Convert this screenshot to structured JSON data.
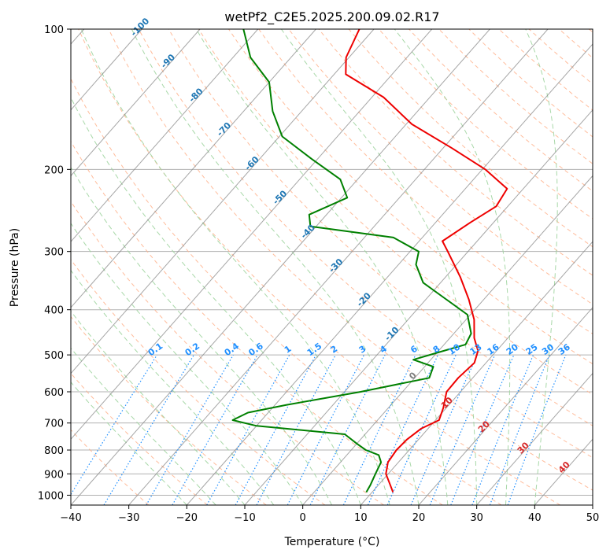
{
  "chart_data": {
    "type": "skew-t log-p",
    "title": "wetPf2_C2E5.2025.200.09.02.R17",
    "xlabel": "Temperature (°C)",
    "ylabel": "Pressure (hPa)",
    "xlim": [
      -40,
      50
    ],
    "ylim": [
      1050,
      100
    ],
    "grid": true,
    "x_ticks": [
      -40,
      -30,
      -20,
      -10,
      0,
      10,
      20,
      30,
      40,
      50
    ],
    "x_tick_labels": [
      "−40",
      "−30",
      "−20",
      "−10",
      "0",
      "10",
      "20",
      "30",
      "40",
      "50"
    ],
    "y_ticks": [
      1000,
      900,
      800,
      700,
      600,
      500,
      400,
      300,
      200,
      100
    ],
    "y_tick_labels": [
      "1000",
      "900",
      "800",
      "700",
      "600",
      "500",
      "400",
      "300",
      "200",
      "100"
    ],
    "colors": {
      "temperature": "#ee0000",
      "dewpoint": "#008000",
      "isotherm": "#888888",
      "dry_adiabat": "#ffb08a",
      "moist_adiabat": "#9fd49f",
      "mixing_ratio": "#1f8fff",
      "isotherm_label_blue": "#1f77b4",
      "isotherm_label_red": "#d62728",
      "isotherm_label_gray": "#7f7f7f"
    },
    "series": [
      {
        "key": "temperature",
        "points": [
          {
            "p": 985,
            "t": 13.6
          },
          {
            "p": 950,
            "t": 12.0
          },
          {
            "p": 900,
            "t": 9.6
          },
          {
            "p": 850,
            "t": 8.2
          },
          {
            "p": 800,
            "t": 7.8
          },
          {
            "p": 760,
            "t": 8.0
          },
          {
            "p": 720,
            "t": 8.8
          },
          {
            "p": 690,
            "t": 10.6
          },
          {
            "p": 650,
            "t": 9.5
          },
          {
            "p": 600,
            "t": 7.6
          },
          {
            "p": 560,
            "t": 7.5
          },
          {
            "p": 520,
            "t": 8.0
          },
          {
            "p": 490,
            "t": 6.8
          },
          {
            "p": 460,
            "t": 4.2
          },
          {
            "p": 420,
            "t": 1.4
          },
          {
            "p": 380,
            "t": -2.6
          },
          {
            "p": 340,
            "t": -7.5
          },
          {
            "p": 300,
            "t": -13.5
          },
          {
            "p": 285,
            "t": -16.0
          },
          {
            "p": 260,
            "t": -14.0
          },
          {
            "p": 240,
            "t": -12.0
          },
          {
            "p": 220,
            "t": -12.8
          },
          {
            "p": 200,
            "t": -19.5
          },
          {
            "p": 180,
            "t": -28.5
          },
          {
            "p": 160,
            "t": -39.0
          },
          {
            "p": 140,
            "t": -48.0
          },
          {
            "p": 125,
            "t": -58.0
          },
          {
            "p": 115,
            "t": -60.5
          },
          {
            "p": 100,
            "t": -62.5
          }
        ]
      },
      {
        "key": "dewpoint",
        "points": [
          {
            "p": 985,
            "t": 9.0
          },
          {
            "p": 950,
            "t": 8.6
          },
          {
            "p": 900,
            "t": 7.8
          },
          {
            "p": 850,
            "t": 7.0
          },
          {
            "p": 820,
            "t": 5.5
          },
          {
            "p": 800,
            "t": 2.5
          },
          {
            "p": 775,
            "t": 0.0
          },
          {
            "p": 740,
            "t": -3.5
          },
          {
            "p": 710,
            "t": -20.0
          },
          {
            "p": 690,
            "t": -25.0
          },
          {
            "p": 665,
            "t": -23.5
          },
          {
            "p": 640,
            "t": -18.0
          },
          {
            "p": 600,
            "t": -7.2
          },
          {
            "p": 560,
            "t": 2.5
          },
          {
            "p": 530,
            "t": 1.5
          },
          {
            "p": 512,
            "t": -3.0
          },
          {
            "p": 495,
            "t": 0.0
          },
          {
            "p": 475,
            "t": 3.7
          },
          {
            "p": 450,
            "t": 3.0
          },
          {
            "p": 410,
            "t": -0.5
          },
          {
            "p": 380,
            "t": -6.5
          },
          {
            "p": 350,
            "t": -13.0
          },
          {
            "p": 320,
            "t": -17.0
          },
          {
            "p": 300,
            "t": -18.5
          },
          {
            "p": 280,
            "t": -25.0
          },
          {
            "p": 265,
            "t": -41.0
          },
          {
            "p": 250,
            "t": -43.0
          },
          {
            "p": 230,
            "t": -39.0
          },
          {
            "p": 210,
            "t": -43.0
          },
          {
            "p": 190,
            "t": -51.0
          },
          {
            "p": 170,
            "t": -59.5
          },
          {
            "p": 150,
            "t": -65.0
          },
          {
            "p": 130,
            "t": -70.0
          },
          {
            "p": 115,
            "t": -77.0
          },
          {
            "p": 100,
            "t": -82.5
          }
        ]
      }
    ],
    "isotherm_labels": [
      {
        "text": "-100",
        "t": -100,
        "color": "blue"
      },
      {
        "text": "-90",
        "t": -90,
        "color": "blue"
      },
      {
        "text": "-80",
        "t": -80,
        "color": "blue"
      },
      {
        "text": "-70",
        "t": -70,
        "color": "blue"
      },
      {
        "text": "-60",
        "t": -60,
        "color": "blue"
      },
      {
        "text": "-50",
        "t": -50,
        "color": "blue"
      },
      {
        "text": "-40",
        "t": -40,
        "color": "blue"
      },
      {
        "text": "-30",
        "t": -30,
        "color": "blue"
      },
      {
        "text": "-20",
        "t": -20,
        "color": "blue"
      },
      {
        "text": "-10",
        "t": -10,
        "color": "blue"
      },
      {
        "text": "0",
        "t": 0,
        "color": "gray"
      },
      {
        "text": "10",
        "t": 10,
        "color": "red"
      },
      {
        "text": "20",
        "t": 20,
        "color": "red"
      },
      {
        "text": "30",
        "t": 30,
        "color": "red"
      },
      {
        "text": "40",
        "t": 40,
        "color": "red"
      }
    ],
    "mixing_ratio_labels": [
      "0.1",
      "0.2",
      "0.4",
      "0.6",
      "1",
      "1.5",
      "2",
      "3",
      "4",
      "6",
      "8",
      "10",
      "13",
      "16",
      "20",
      "25",
      "30",
      "36"
    ],
    "mixing_ratio_values": [
      0.1,
      0.2,
      0.4,
      0.6,
      1,
      1.5,
      2,
      3,
      4,
      6,
      8,
      10,
      13,
      16,
      20,
      25,
      30,
      36
    ]
  }
}
